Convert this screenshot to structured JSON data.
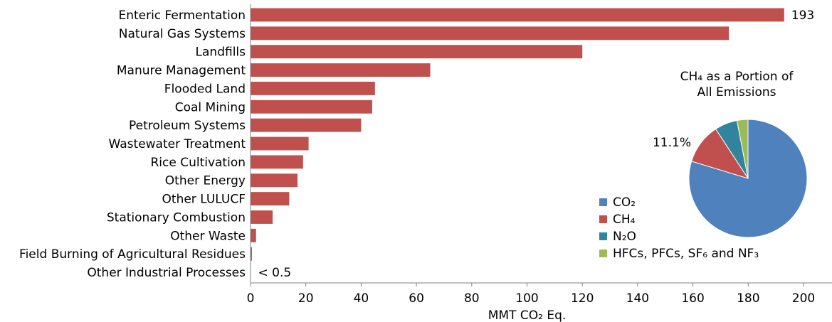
{
  "chart_data": [
    {
      "type": "bar",
      "orientation": "horizontal",
      "categories": [
        "Enteric Fermentation",
        "Natural Gas Systems",
        "Landfills",
        "Manure Management",
        "Flooded Land",
        "Coal Mining",
        "Petroleum Systems",
        "Wastewater Treatment",
        "Rice Cultivation",
        "Other Energy",
        "Other LULUCF",
        "Stationary Combustion",
        "Other Waste",
        "Field Burning of Agricultural Residues",
        "Other Industrial Processes"
      ],
      "values": [
        193,
        173,
        120,
        65,
        45,
        44,
        40,
        21,
        19,
        17,
        14,
        8,
        2,
        0.5,
        0.1
      ],
      "data_labels": [
        {
          "category": "Enteric Fermentation",
          "text": "193"
        },
        {
          "category": "Other Industrial Processes",
          "text": "< 0.5"
        }
      ],
      "xlabel": "MMT CO₂ Eq.",
      "xlim": [
        0,
        200
      ],
      "xticks": [
        0,
        20,
        40,
        60,
        80,
        100,
        120,
        140,
        160,
        180,
        200
      ],
      "bar_color": "#c0504d",
      "grid": false
    },
    {
      "type": "pie",
      "title": "CH₄ as a Portion of All Emissions",
      "slices": [
        {
          "name": "CO₂",
          "value": 79.7,
          "color": "#4f81bd"
        },
        {
          "name": "CH₄",
          "value": 11.1,
          "color": "#c0504d"
        },
        {
          "name": "N₂O",
          "value": 6.2,
          "color": "#31849b"
        },
        {
          "name": "HFCs, PFCs, SF₆ and NF₃",
          "value": 3.0,
          "color": "#9bbb59"
        }
      ],
      "slice_label": "11.1%",
      "legend_position": "left"
    }
  ]
}
